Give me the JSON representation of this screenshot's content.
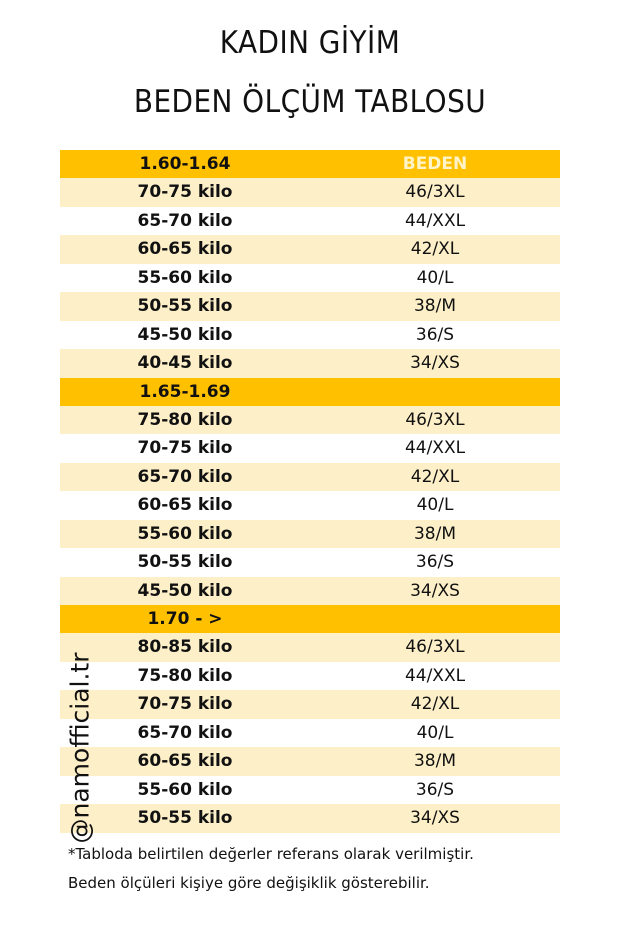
{
  "title": {
    "line1": "KADIN GİYİM",
    "line2": "BEDEN ÖLÇÜM TABLOSU"
  },
  "colors": {
    "header": "#ffc000",
    "row_light": "#fdefc8",
    "row_white": "#ffffff"
  },
  "table": {
    "size_header": "BEDEN",
    "groups": [
      {
        "height": "1.60-1.64",
        "rows": [
          {
            "weight": "70-75 kilo",
            "size": "46/3XL"
          },
          {
            "weight": "65-70 kilo",
            "size": "44/XXL"
          },
          {
            "weight": "60-65 kilo",
            "size": "42/XL"
          },
          {
            "weight": "55-60 kilo",
            "size": "40/L"
          },
          {
            "weight": "50-55 kilo",
            "size": "38/M"
          },
          {
            "weight": "45-50 kilo",
            "size": "36/S"
          },
          {
            "weight": "40-45 kilo",
            "size": "34/XS"
          }
        ]
      },
      {
        "height": "1.65-1.69",
        "rows": [
          {
            "weight": "75-80 kilo",
            "size": "46/3XL"
          },
          {
            "weight": "70-75 kilo",
            "size": "44/XXL"
          },
          {
            "weight": "65-70 kilo",
            "size": "42/XL"
          },
          {
            "weight": "60-65 kilo",
            "size": "40/L"
          },
          {
            "weight": "55-60 kilo",
            "size": "38/M"
          },
          {
            "weight": "50-55 kilo",
            "size": "36/S"
          },
          {
            "weight": "45-50 kilo",
            "size": "34/XS"
          }
        ]
      },
      {
        "height": "1.70 - >",
        "rows": [
          {
            "weight": "80-85 kilo",
            "size": "46/3XL"
          },
          {
            "weight": "75-80 kilo",
            "size": "44/XXL"
          },
          {
            "weight": "70-75 kilo",
            "size": "42/XL"
          },
          {
            "weight": "65-70 kilo",
            "size": "40/L"
          },
          {
            "weight": "60-65 kilo",
            "size": "38/M"
          },
          {
            "weight": "55-60 kilo",
            "size": "36/S"
          },
          {
            "weight": "50-55 kilo",
            "size": "34/XS"
          }
        ]
      }
    ]
  },
  "watermark": "@namofficial.tr",
  "notes": {
    "line1": "*Tabloda belirtilen değerler referans olarak verilmiştir.",
    "line2": "Beden ölçüleri kişiye göre değişiklik gösterebilir."
  }
}
